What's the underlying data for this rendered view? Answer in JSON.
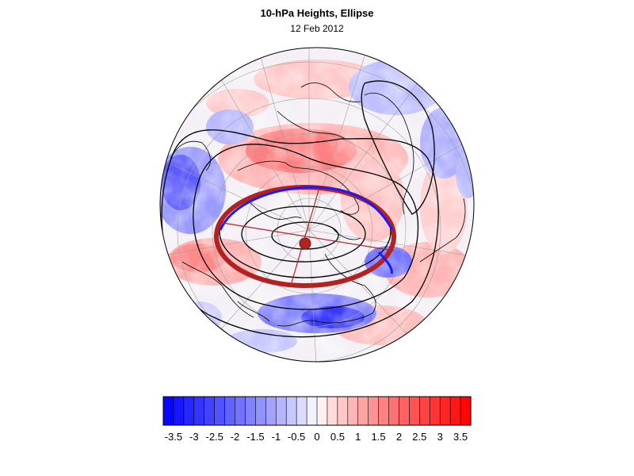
{
  "title": "10-hPa Heights, Ellipse",
  "subtitle": "12 Feb 2012",
  "colorbar": {
    "min": -3.75,
    "max": 3.75,
    "step": 0.25,
    "tick_labels": [
      "-3.5",
      "-3",
      "-2.5",
      "-2",
      "-1.5",
      "-1",
      "-0.5",
      "0",
      "0.5",
      "1",
      "1.5",
      "2",
      "2.5",
      "3",
      "3.5"
    ],
    "tick_values": [
      -3.5,
      -3,
      -2.5,
      -2,
      -1.5,
      -1,
      -0.5,
      0,
      0.5,
      1,
      1.5,
      2,
      2.5,
      3,
      3.5
    ],
    "negative_color": "#0000ff",
    "positive_color": "#ff0000",
    "neutral_color": "#ffffff"
  },
  "map": {
    "projection": "polar-stereographic-north",
    "anomaly_colors": {
      "strong_negative": "#3333ff",
      "weak_negative": "#c8c8ff",
      "weak_positive": "#ffc8c8",
      "strong_positive": "#ff3030"
    },
    "ellipse_color": "#b22222",
    "ellipse_inner_color": "#1a1aff",
    "center_marker_color": "#b22222",
    "contour_color": "#000000",
    "graticule_color": "#999999"
  }
}
